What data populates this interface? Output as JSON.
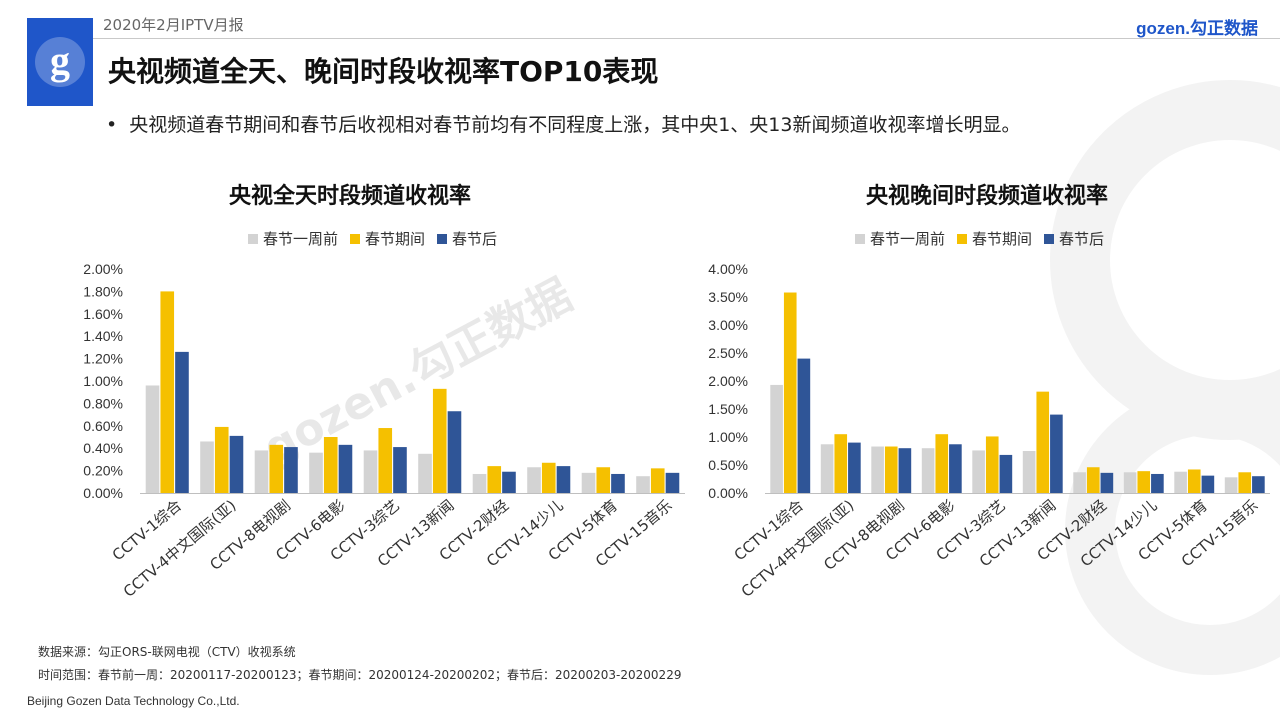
{
  "header": {
    "month_label": "2020年2月IPTV月报",
    "brand": "gozen.勾正数据",
    "logo_letter": "g"
  },
  "page_title": "央视频道全天、晚间时段收视率TOP10表现",
  "bullet_text": "央视频道春节期间和春节后收视相对春节前均有不同程度上涨，其中央1、央13新闻频道收视率增长明显。",
  "watermark": "gozen.勾正数据",
  "colors": {
    "before": "#d3d3d3",
    "during": "#f5c000",
    "after": "#2f5597",
    "brand": "#1f56c9"
  },
  "footer": {
    "source": "数据来源：勾正ORS-联网电视（CTV）收视系统",
    "time_range": "时间范围：春节前一周：20200117-20200123；春节期间：20200124-20200202；春节后：20200203-20200229",
    "company": "Beijing Gozen Data Technology Co.,Ltd."
  },
  "chart_data": [
    {
      "type": "bar",
      "title": "央视全天时段频道收视率",
      "categories": [
        "CCTV-1综合",
        "CCTV-4中文国际(亚)",
        "CCTV-8电视剧",
        "CCTV-6电影",
        "CCTV-3综艺",
        "CCTV-13新闻",
        "CCTV-2财经",
        "CCTV-14少儿",
        "CCTV-5体育",
        "CCTV-15音乐"
      ],
      "series": [
        {
          "name": "春节一周前",
          "values": [
            0.96,
            0.46,
            0.38,
            0.36,
            0.38,
            0.35,
            0.17,
            0.23,
            0.18,
            0.15
          ]
        },
        {
          "name": "春节期间",
          "values": [
            1.8,
            0.59,
            0.43,
            0.5,
            0.58,
            0.93,
            0.24,
            0.27,
            0.23,
            0.22
          ]
        },
        {
          "name": "春节后",
          "values": [
            1.26,
            0.51,
            0.41,
            0.43,
            0.41,
            0.73,
            0.19,
            0.24,
            0.17,
            0.18
          ]
        }
      ],
      "ylim": [
        0,
        2.0
      ],
      "yticks": [
        "0.00%",
        "0.20%",
        "0.40%",
        "0.60%",
        "0.80%",
        "1.00%",
        "1.20%",
        "1.40%",
        "1.60%",
        "1.80%",
        "2.00%"
      ],
      "legend_position": "top"
    },
    {
      "type": "bar",
      "title": "央视晚间时段频道收视率",
      "categories": [
        "CCTV-1综合",
        "CCTV-4中文国际(亚)",
        "CCTV-8电视剧",
        "CCTV-6电影",
        "CCTV-3综艺",
        "CCTV-13新闻",
        "CCTV-2财经",
        "CCTV-14少儿",
        "CCTV-5体育",
        "CCTV-15音乐"
      ],
      "series": [
        {
          "name": "春节一周前",
          "values": [
            1.93,
            0.87,
            0.83,
            0.8,
            0.76,
            0.75,
            0.37,
            0.37,
            0.38,
            0.28
          ]
        },
        {
          "name": "春节期间",
          "values": [
            3.58,
            1.05,
            0.83,
            1.05,
            1.01,
            1.81,
            0.46,
            0.39,
            0.42,
            0.37
          ]
        },
        {
          "name": "春节后",
          "values": [
            2.4,
            0.9,
            0.8,
            0.87,
            0.68,
            1.4,
            0.36,
            0.34,
            0.31,
            0.3
          ]
        }
      ],
      "ylim": [
        0,
        4.0
      ],
      "yticks": [
        "0.00%",
        "0.50%",
        "1.00%",
        "1.50%",
        "2.00%",
        "2.50%",
        "3.00%",
        "3.50%",
        "4.00%"
      ],
      "legend_position": "top"
    }
  ]
}
